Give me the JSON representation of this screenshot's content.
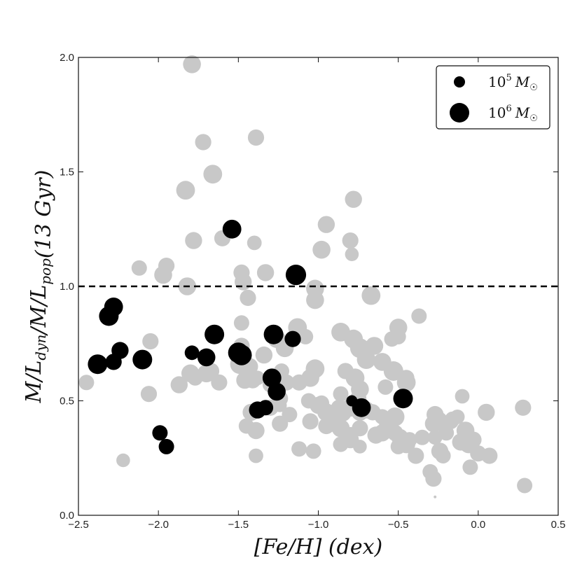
{
  "chart_data": {
    "type": "scatter",
    "xlabel": "[Fe/H] (dex)",
    "ylabel": "M/L_dyn/M/L_pop(13 Gyr)",
    "xlim": [
      -2.5,
      0.5
    ],
    "ylim": [
      0.0,
      2.0
    ],
    "x_ticks": [
      "−2.5",
      "−2.0",
      "−1.5",
      "−1.0",
      "−0.5",
      "0.0",
      "0.5"
    ],
    "y_ticks": [
      "0.0",
      "0.5",
      "1.0",
      "1.5",
      "2.0"
    ],
    "reference_line": {
      "y": 1.0,
      "style": "dashed"
    },
    "legend": {
      "placement": "top-right",
      "entries": [
        {
          "label": "10^5 M_☉",
          "mass": 5
        },
        {
          "label": "10^6 M_☉",
          "mass": 6
        }
      ]
    },
    "colors": {
      "highlighted": "#000000",
      "others": "#c8c8c8"
    },
    "series": [
      {
        "points": [
          [
            -1.79,
            1.97,
            5.8
          ],
          [
            -1.72,
            1.63,
            5.6
          ],
          [
            -1.39,
            1.65,
            5.6
          ],
          [
            -1.66,
            1.49,
            5.9
          ],
          [
            -1.83,
            1.42,
            5.9
          ],
          [
            -0.78,
            1.38,
            5.7
          ],
          [
            -0.95,
            1.27,
            5.7
          ],
          [
            -1.78,
            1.2,
            5.7
          ],
          [
            -1.6,
            1.21,
            5.6
          ],
          [
            -0.8,
            1.2,
            5.6
          ],
          [
            -1.4,
            1.19,
            5.4
          ],
          [
            -0.98,
            1.16,
            5.8
          ],
          [
            -0.79,
            1.14,
            5.3
          ],
          [
            -2.12,
            1.08,
            5.5
          ],
          [
            -1.95,
            1.09,
            5.6
          ],
          [
            -1.48,
            1.06,
            5.6
          ],
          [
            -1.33,
            1.06,
            5.7
          ],
          [
            -1.97,
            1.05,
            5.8
          ],
          [
            -1.47,
            1.02,
            5.7
          ],
          [
            -1.82,
            1.0,
            5.8
          ],
          [
            -1.02,
            0.99,
            5.8
          ],
          [
            -1.02,
            0.94,
            5.8
          ],
          [
            -0.67,
            0.96,
            5.9
          ],
          [
            -1.44,
            0.95,
            5.6
          ],
          [
            -0.37,
            0.87,
            5.5
          ],
          [
            -1.48,
            0.84,
            5.5
          ],
          [
            -1.13,
            0.82,
            5.9
          ],
          [
            -0.5,
            0.82,
            5.8
          ],
          [
            -0.86,
            0.8,
            5.9
          ],
          [
            -0.78,
            0.77,
            5.9
          ],
          [
            -1.26,
            0.77,
            5.8
          ],
          [
            -1.08,
            0.78,
            5.5
          ],
          [
            -0.74,
            0.73,
            6.0
          ],
          [
            -0.65,
            0.74,
            5.8
          ],
          [
            -0.54,
            0.77,
            5.5
          ],
          [
            -0.5,
            0.78,
            5.5
          ],
          [
            -2.05,
            0.76,
            5.6
          ],
          [
            -1.48,
            0.74,
            5.6
          ],
          [
            -1.49,
            0.66,
            6.0
          ],
          [
            -1.34,
            0.7,
            5.7
          ],
          [
            -1.21,
            0.73,
            5.8
          ],
          [
            -1.23,
            0.63,
            5.5
          ],
          [
            -1.38,
            0.6,
            5.4
          ],
          [
            -1.43,
            0.65,
            5.7
          ],
          [
            -1.25,
            0.56,
            5.5
          ],
          [
            -1.3,
            0.57,
            5.5
          ],
          [
            -1.12,
            0.58,
            5.6
          ],
          [
            -1.05,
            0.6,
            5.8
          ],
          [
            -1.02,
            0.64,
            5.9
          ],
          [
            -0.83,
            0.63,
            5.6
          ],
          [
            -0.77,
            0.6,
            5.9
          ],
          [
            -0.7,
            0.68,
            5.9
          ],
          [
            -0.6,
            0.67,
            5.8
          ],
          [
            -0.53,
            0.63,
            6.0
          ],
          [
            -0.45,
            0.6,
            5.6
          ],
          [
            -0.45,
            0.58,
            5.9
          ],
          [
            -0.74,
            0.55,
            5.8
          ],
          [
            -0.58,
            0.56,
            5.5
          ],
          [
            -0.86,
            0.53,
            5.5
          ],
          [
            -0.75,
            0.51,
            5.6
          ],
          [
            -1.46,
            0.59,
            5.7
          ],
          [
            -1.41,
            0.59,
            5.6
          ],
          [
            -1.8,
            0.62,
            5.8
          ],
          [
            -1.7,
            0.62,
            5.8
          ],
          [
            -1.67,
            0.63,
            5.6
          ],
          [
            -1.62,
            0.58,
            5.6
          ],
          [
            -1.87,
            0.57,
            5.7
          ],
          [
            -1.77,
            0.6,
            5.5
          ],
          [
            -2.06,
            0.53,
            5.6
          ],
          [
            -2.45,
            0.58,
            5.5
          ],
          [
            -1.2,
            0.58,
            5.6
          ],
          [
            -1.26,
            0.59,
            5.6
          ],
          [
            -1.24,
            0.51,
            5.6
          ],
          [
            -1.3,
            0.47,
            5.6
          ],
          [
            -1.24,
            0.48,
            5.3
          ],
          [
            -1.42,
            0.45,
            5.7
          ],
          [
            -1.32,
            0.47,
            5.5
          ],
          [
            -1.0,
            0.48,
            5.7
          ],
          [
            -1.06,
            0.5,
            5.5
          ],
          [
            -0.98,
            0.49,
            5.5
          ],
          [
            -0.95,
            0.45,
            5.8
          ],
          [
            -0.87,
            0.47,
            5.6
          ],
          [
            -0.85,
            0.45,
            5.9
          ],
          [
            -0.8,
            0.47,
            5.8
          ],
          [
            -0.74,
            0.45,
            5.7
          ],
          [
            -0.7,
            0.46,
            5.7
          ],
          [
            -0.66,
            0.45,
            5.6
          ],
          [
            -0.6,
            0.43,
            5.5
          ],
          [
            -0.52,
            0.43,
            5.9
          ],
          [
            -0.57,
            0.39,
            5.6
          ],
          [
            -0.6,
            0.36,
            5.7
          ],
          [
            -0.64,
            0.35,
            5.7
          ],
          [
            -0.52,
            0.36,
            5.6
          ],
          [
            -0.49,
            0.34,
            5.7
          ],
          [
            -0.45,
            0.31,
            5.8
          ],
          [
            -0.5,
            0.3,
            5.5
          ],
          [
            -0.43,
            0.33,
            5.5
          ],
          [
            -0.35,
            0.34,
            5.5
          ],
          [
            -0.39,
            0.26,
            5.6
          ],
          [
            -0.27,
            0.34,
            5.4
          ],
          [
            -0.28,
            0.4,
            5.7
          ],
          [
            -0.27,
            0.44,
            5.7
          ],
          [
            -0.25,
            0.41,
            6.0
          ],
          [
            -0.2,
            0.36,
            5.5
          ],
          [
            -0.17,
            0.41,
            5.5
          ],
          [
            -0.16,
            0.42,
            5.5
          ],
          [
            -0.13,
            0.43,
            5.4
          ],
          [
            -0.08,
            0.37,
            5.8
          ],
          [
            -0.06,
            0.31,
            5.8
          ],
          [
            -0.11,
            0.32,
            5.7
          ],
          [
            -0.03,
            0.33,
            5.6
          ],
          [
            0.0,
            0.27,
            5.6
          ],
          [
            -0.24,
            0.28,
            5.7
          ],
          [
            -0.22,
            0.26,
            5.5
          ],
          [
            -0.3,
            0.19,
            5.5
          ],
          [
            -0.28,
            0.16,
            5.6
          ],
          [
            -0.05,
            0.21,
            5.5
          ],
          [
            0.07,
            0.26,
            5.6
          ],
          [
            0.05,
            0.45,
            5.7
          ],
          [
            -0.1,
            0.52,
            5.4
          ],
          [
            0.28,
            0.47,
            5.6
          ],
          [
            0.29,
            0.13,
            5.5
          ],
          [
            -0.91,
            0.4,
            5.6
          ],
          [
            -0.86,
            0.38,
            5.8
          ],
          [
            -0.8,
            0.35,
            5.6
          ],
          [
            -0.74,
            0.38,
            5.6
          ],
          [
            -0.86,
            0.31,
            5.5
          ],
          [
            -0.8,
            0.33,
            5.7
          ],
          [
            -0.74,
            0.3,
            5.3
          ],
          [
            -0.95,
            0.39,
            5.6
          ],
          [
            -1.05,
            0.41,
            5.6
          ],
          [
            -1.12,
            0.29,
            5.5
          ],
          [
            -1.18,
            0.44,
            5.5
          ],
          [
            -1.24,
            0.4,
            5.6
          ],
          [
            -1.03,
            0.28,
            5.5
          ],
          [
            -1.39,
            0.37,
            5.7
          ],
          [
            -1.45,
            0.39,
            5.5
          ],
          [
            -1.39,
            0.26,
            5.4
          ],
          [
            -2.22,
            0.24,
            5.3
          ],
          [
            -0.27,
            0.08,
            4.0
          ]
        ]
      },
      {
        "points": [
          [
            -2.38,
            0.66,
            6.0
          ],
          [
            -2.31,
            0.87,
            6.0
          ],
          [
            -2.28,
            0.91,
            5.9
          ],
          [
            -2.28,
            0.67,
            5.6
          ],
          [
            -2.24,
            0.72,
            5.7
          ],
          [
            -2.1,
            0.68,
            6.0
          ],
          [
            -1.99,
            0.36,
            5.5
          ],
          [
            -1.95,
            0.3,
            5.5
          ],
          [
            -1.79,
            0.71,
            5.4
          ],
          [
            -1.7,
            0.69,
            5.8
          ],
          [
            -1.65,
            0.79,
            6.0
          ],
          [
            -1.54,
            1.25,
            5.9
          ],
          [
            -1.5,
            0.71,
            6.1
          ],
          [
            -1.48,
            0.7,
            6.1
          ],
          [
            -1.38,
            0.46,
            5.7
          ],
          [
            -1.33,
            0.47,
            5.5
          ],
          [
            -1.29,
            0.6,
            5.9
          ],
          [
            -1.28,
            0.79,
            6.0
          ],
          [
            -1.26,
            0.54,
            5.8
          ],
          [
            -1.16,
            0.77,
            5.6
          ],
          [
            -1.14,
            1.05,
            6.1
          ],
          [
            -0.79,
            0.5,
            5.0
          ],
          [
            -0.73,
            0.47,
            5.9
          ],
          [
            -0.47,
            0.51,
            6.0
          ]
        ]
      }
    ]
  }
}
